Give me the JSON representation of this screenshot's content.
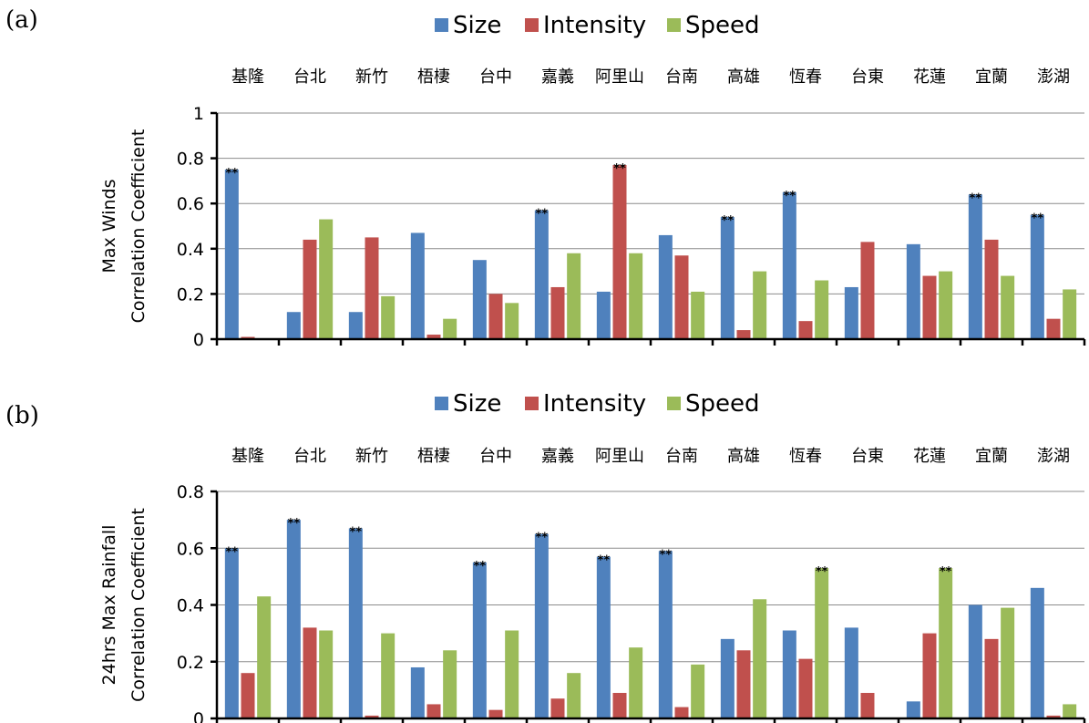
{
  "chart_data": [
    {
      "type": "bar",
      "panel_label": "(a)",
      "categories": [
        "基隆",
        "台北",
        "新竹",
        "梧棲",
        "台中",
        "嘉義",
        "阿里山",
        "台南",
        "高雄",
        "恆春",
        "台東",
        "花蓮",
        "宜蘭",
        "澎湖"
      ],
      "series": [
        {
          "name": "Size",
          "color": "#4f81bd",
          "values": [
            0.75,
            0.12,
            0.12,
            0.47,
            0.35,
            0.57,
            0.21,
            0.46,
            0.54,
            0.65,
            0.23,
            0.42,
            0.64,
            0.55
          ]
        },
        {
          "name": "Intensity",
          "color": "#c0504d",
          "values": [
            0.01,
            0.44,
            0.45,
            0.02,
            0.2,
            0.23,
            0.77,
            0.37,
            0.04,
            0.08,
            0.43,
            0.28,
            0.44,
            0.09
          ]
        },
        {
          "name": "Speed",
          "color": "#9bbb59",
          "values": [
            0.0,
            0.53,
            0.19,
            0.09,
            0.16,
            0.38,
            0.38,
            0.21,
            0.3,
            0.26,
            0.0,
            0.3,
            0.28,
            0.22
          ]
        }
      ],
      "significance": [
        {
          "category": 0,
          "series": 0
        },
        {
          "category": 5,
          "series": 0
        },
        {
          "category": 6,
          "series": 1
        },
        {
          "category": 8,
          "series": 0
        },
        {
          "category": 9,
          "series": 0
        },
        {
          "category": 12,
          "series": 0
        },
        {
          "category": 13,
          "series": 0
        }
      ],
      "significance_label": "**",
      "ylabel_line1": "Max Winds",
      "ylabel_line2": "Correlation Coefficient",
      "ylim": [
        0,
        1
      ],
      "yticks": [
        0,
        0.2,
        0.4,
        0.6,
        0.8,
        1
      ],
      "ytick_labels": [
        "0",
        "0.2",
        "0.4",
        "0.6",
        "0.8",
        "1"
      ],
      "grid": true,
      "legend_position": "top-center"
    },
    {
      "type": "bar",
      "panel_label": "(b)",
      "categories": [
        "基隆",
        "台北",
        "新竹",
        "梧棲",
        "台中",
        "嘉義",
        "阿里山",
        "台南",
        "高雄",
        "恆春",
        "台東",
        "花蓮",
        "宜蘭",
        "澎湖"
      ],
      "series": [
        {
          "name": "Size",
          "color": "#4f81bd",
          "values": [
            0.6,
            0.7,
            0.67,
            0.18,
            0.55,
            0.65,
            0.57,
            0.59,
            0.28,
            0.31,
            0.32,
            0.06,
            0.4,
            0.46
          ]
        },
        {
          "name": "Intensity",
          "color": "#c0504d",
          "values": [
            0.16,
            0.32,
            0.01,
            0.05,
            0.03,
            0.07,
            0.09,
            0.04,
            0.24,
            0.21,
            0.09,
            0.3,
            0.28,
            0.01
          ]
        },
        {
          "name": "Speed",
          "color": "#9bbb59",
          "values": [
            0.43,
            0.31,
            0.3,
            0.24,
            0.31,
            0.16,
            0.25,
            0.19,
            0.42,
            0.53,
            0.0,
            0.53,
            0.39,
            0.05
          ]
        }
      ],
      "significance": [
        {
          "category": 0,
          "series": 0
        },
        {
          "category": 1,
          "series": 0
        },
        {
          "category": 2,
          "series": 0
        },
        {
          "category": 4,
          "series": 0
        },
        {
          "category": 5,
          "series": 0
        },
        {
          "category": 6,
          "series": 0
        },
        {
          "category": 7,
          "series": 0
        },
        {
          "category": 9,
          "series": 2
        },
        {
          "category": 11,
          "series": 2
        }
      ],
      "significance_label": "**",
      "ylabel_line1": "24hrs Max Rainfall",
      "ylabel_line2": "Correlation Coefficient",
      "ylim": [
        0,
        0.8
      ],
      "yticks": [
        0,
        0.2,
        0.4,
        0.6,
        0.8
      ],
      "ytick_labels": [
        "0",
        "0.2",
        "0.4",
        "0.6",
        "0.8"
      ],
      "grid": true,
      "legend_position": "top-center"
    }
  ]
}
